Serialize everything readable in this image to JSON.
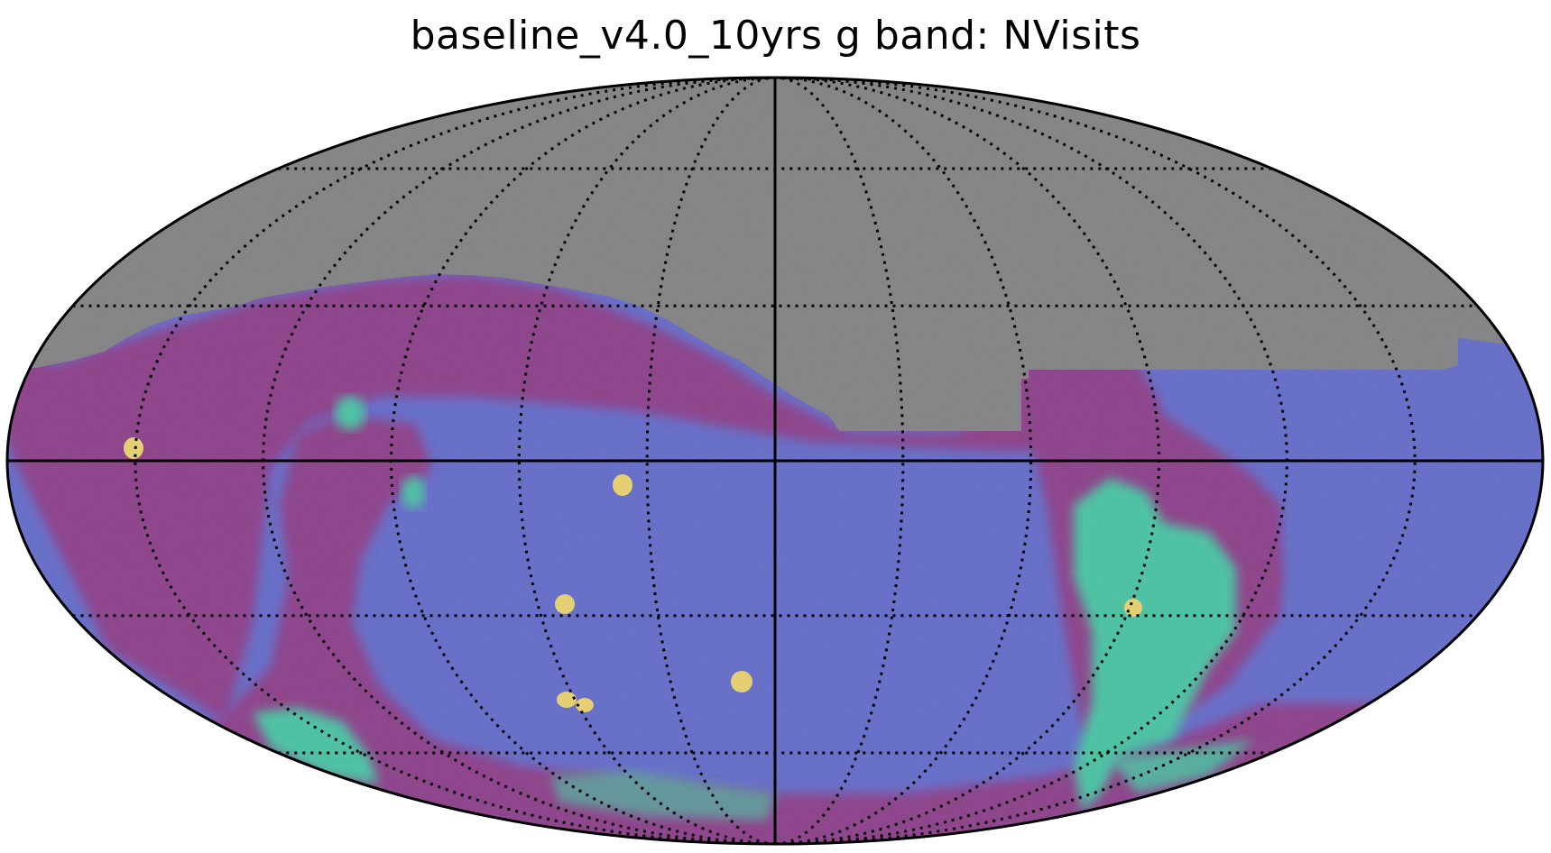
{
  "figure": {
    "title": "baseline_v4.0_10yrs g band: NVisits"
  },
  "map": {
    "projection": "mollweide",
    "graticule": {
      "meridian_spacing_deg": 30,
      "parallel_latitudes_deg": [
        -60,
        -30,
        0,
        30,
        60
      ],
      "style": "dotted"
    },
    "colors": {
      "no_data": "#808080",
      "low": "#8a3b86",
      "mid": "#6069c8",
      "high": "#44c3a0",
      "max": "#e9d16b",
      "outline": "#000000"
    }
  }
}
